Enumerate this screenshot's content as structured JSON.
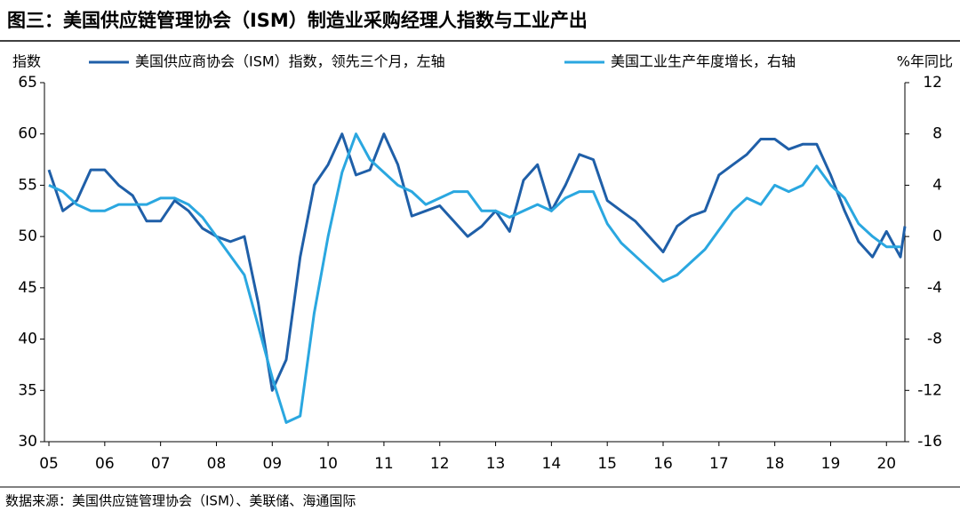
{
  "chart_data": {
    "type": "line",
    "title": "图三：美国供应链管理协会（ISM）制造业采购经理人指数与工业产出",
    "ylabel": "指数",
    "y2label": "%年同比",
    "source": "数据来源：美国供应链管理协会（ISM）、美联储、海通国际",
    "xlim": [
      2004.92,
      2020.33
    ],
    "xticks": [
      {
        "value": 2005,
        "label": "05"
      },
      {
        "value": 2006,
        "label": "06"
      },
      {
        "value": 2007,
        "label": "07"
      },
      {
        "value": 2008,
        "label": "08"
      },
      {
        "value": 2009,
        "label": "09"
      },
      {
        "value": 2010,
        "label": "10"
      },
      {
        "value": 2011,
        "label": "11"
      },
      {
        "value": 2012,
        "label": "12"
      },
      {
        "value": 2013,
        "label": "13"
      },
      {
        "value": 2014,
        "label": "14"
      },
      {
        "value": 2015,
        "label": "15"
      },
      {
        "value": 2016,
        "label": "16"
      },
      {
        "value": 2017,
        "label": "17"
      },
      {
        "value": 2018,
        "label": "18"
      },
      {
        "value": 2019,
        "label": "19"
      },
      {
        "value": 2020,
        "label": "20"
      }
    ],
    "ylim": [
      30,
      65
    ],
    "yticks": [
      30,
      35,
      40,
      45,
      50,
      55,
      60,
      65
    ],
    "y2lim": [
      -16,
      12
    ],
    "y2ticks": [
      -16,
      -12,
      -8,
      -4,
      0,
      4,
      8,
      12
    ],
    "series": [
      {
        "name": "美国供应商协会（ISM）指数，领先三个月，左轴",
        "color": "#1f5fa8",
        "x": [
          2005,
          2005.25,
          2005.5,
          2005.75,
          2006,
          2006.25,
          2006.5,
          2006.75,
          2007,
          2007.25,
          2007.5,
          2007.75,
          2008,
          2008.25,
          2008.5,
          2008.75,
          2009,
          2009.25,
          2009.5,
          2009.75,
          2010,
          2010.25,
          2010.5,
          2010.75,
          2011,
          2011.25,
          2011.5,
          2011.75,
          2012,
          2012.25,
          2012.5,
          2012.75,
          2013,
          2013.25,
          2013.5,
          2013.75,
          2014,
          2014.25,
          2014.5,
          2014.75,
          2015,
          2015.25,
          2015.5,
          2015.75,
          2016,
          2016.25,
          2016.5,
          2016.75,
          2017,
          2017.25,
          2017.5,
          2017.75,
          2018,
          2018.25,
          2018.5,
          2018.75,
          2019,
          2019.25,
          2019.5,
          2019.75,
          2020,
          2020.25,
          2020.33
        ],
        "values": [
          56.5,
          52.5,
          53.5,
          56.5,
          56.5,
          55,
          54,
          51.5,
          51.5,
          53.5,
          52.5,
          50.8,
          50,
          49.5,
          50,
          43.5,
          35,
          38,
          48,
          55,
          57,
          60,
          56,
          56.5,
          60,
          57,
          52,
          52.5,
          53,
          51.5,
          50,
          51,
          52.5,
          50.5,
          55.5,
          57,
          52.5,
          55,
          58,
          57.5,
          53.5,
          52.5,
          51.5,
          50,
          48.5,
          51,
          52,
          52.5,
          56,
          57,
          58,
          59.5,
          59.5,
          58.5,
          59,
          59,
          56,
          52.5,
          49.5,
          48,
          50.5,
          48,
          51
        ]
      },
      {
        "name": "美国工业生产年度增长，右轴",
        "color": "#2aa7e0",
        "axis": "y2",
        "x": [
          2005,
          2005.25,
          2005.5,
          2005.75,
          2006,
          2006.25,
          2006.5,
          2006.75,
          2007,
          2007.25,
          2007.5,
          2007.75,
          2008,
          2008.25,
          2008.5,
          2008.75,
          2009,
          2009.25,
          2009.5,
          2009.75,
          2010,
          2010.25,
          2010.5,
          2010.75,
          2011,
          2011.25,
          2011.5,
          2011.75,
          2012,
          2012.25,
          2012.5,
          2012.75,
          2013,
          2013.25,
          2013.5,
          2013.75,
          2014,
          2014.25,
          2014.5,
          2014.75,
          2015,
          2015.25,
          2015.5,
          2015.75,
          2016,
          2016.25,
          2016.5,
          2016.75,
          2017,
          2017.25,
          2017.5,
          2017.75,
          2018,
          2018.25,
          2018.5,
          2018.75,
          2019,
          2019.25,
          2019.5,
          2019.75,
          2020,
          2020.25
        ],
        "values": [
          4,
          3.5,
          2.5,
          2,
          2,
          2.5,
          2.5,
          2.5,
          3,
          3,
          2.5,
          1.5,
          0,
          -1.5,
          -3,
          -7,
          -11,
          -14.5,
          -14,
          -6,
          0,
          5,
          8,
          6,
          5,
          4,
          3.5,
          2.5,
          3,
          3.5,
          3.5,
          2,
          2,
          1.5,
          2,
          2.5,
          2,
          3,
          3.5,
          3.5,
          1,
          -0.5,
          -1.5,
          -2.5,
          -3.5,
          -3,
          -2,
          -1,
          0.5,
          2,
          3,
          2.5,
          4,
          3.5,
          4,
          5.5,
          4,
          3,
          1,
          0,
          -0.8,
          -0.8
        ]
      }
    ]
  }
}
